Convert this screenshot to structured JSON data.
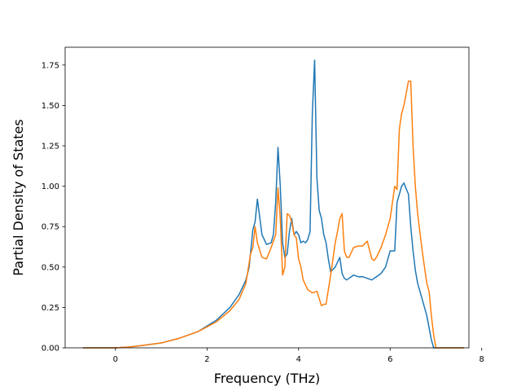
{
  "chart_data": {
    "type": "line",
    "title": "",
    "xlabel": "Frequency (THz)",
    "ylabel": "Partial Density of States",
    "xlim": [
      -1.1,
      7.72
    ],
    "ylim": [
      0,
      1.86
    ],
    "x_ticks": [
      0,
      2,
      4,
      6,
      8
    ],
    "x_tick_labels": [
      "0",
      "2",
      "4",
      "6",
      "8"
    ],
    "y_ticks": [
      0,
      0.25,
      0.5,
      0.75,
      1.0,
      1.25,
      1.5,
      1.75
    ],
    "y_tick_labels": [
      "0.00",
      "0.25",
      "0.50",
      "0.75",
      "1.00",
      "1.25",
      "1.50",
      "1.75"
    ],
    "grid": false,
    "series": [
      {
        "color": "#1f77b4",
        "x": [
          -0.7,
          0.0,
          0.3,
          0.6,
          1.0,
          1.4,
          1.8,
          2.2,
          2.5,
          2.7,
          2.85,
          2.92,
          3.0,
          3.05,
          3.1,
          3.2,
          3.3,
          3.4,
          3.45,
          3.5,
          3.55,
          3.6,
          3.65,
          3.7,
          3.75,
          3.8,
          3.85,
          3.9,
          3.95,
          4.0,
          4.05,
          4.1,
          4.15,
          4.2,
          4.25,
          4.3,
          4.35,
          4.4,
          4.45,
          4.5,
          4.55,
          4.6,
          4.65,
          4.7,
          4.8,
          4.85,
          4.9,
          4.95,
          5.0,
          5.05,
          5.1,
          5.15,
          5.2,
          5.3,
          5.4,
          5.5,
          5.6,
          5.7,
          5.8,
          5.9,
          6.0,
          6.1,
          6.15,
          6.2,
          6.25,
          6.3,
          6.4,
          6.45,
          6.5,
          6.55,
          6.6,
          6.7,
          6.8,
          6.9,
          6.95,
          7.0,
          7.6
        ],
        "y": [
          0.0,
          0.0,
          0.005,
          0.015,
          0.03,
          0.06,
          0.1,
          0.17,
          0.25,
          0.33,
          0.42,
          0.5,
          0.73,
          0.78,
          0.92,
          0.7,
          0.64,
          0.65,
          0.7,
          0.9,
          1.24,
          1.0,
          0.65,
          0.56,
          0.58,
          0.72,
          0.8,
          0.7,
          0.72,
          0.7,
          0.65,
          0.66,
          0.65,
          0.67,
          0.72,
          1.45,
          1.78,
          1.05,
          0.85,
          0.8,
          0.7,
          0.65,
          0.55,
          0.47,
          0.5,
          0.53,
          0.56,
          0.46,
          0.43,
          0.42,
          0.43,
          0.44,
          0.45,
          0.44,
          0.44,
          0.43,
          0.42,
          0.44,
          0.46,
          0.5,
          0.6,
          0.6,
          0.9,
          0.95,
          1.0,
          1.02,
          0.95,
          0.75,
          0.6,
          0.48,
          0.4,
          0.3,
          0.2,
          0.05,
          0.0,
          0.0,
          0.0
        ]
      },
      {
        "color": "#ff7f0e",
        "x": [
          -0.7,
          0.0,
          0.3,
          0.6,
          1.0,
          1.4,
          1.8,
          2.2,
          2.5,
          2.7,
          2.85,
          2.95,
          3.0,
          3.05,
          3.1,
          3.2,
          3.3,
          3.4,
          3.5,
          3.55,
          3.6,
          3.65,
          3.7,
          3.75,
          3.8,
          3.85,
          3.9,
          3.95,
          4.0,
          4.05,
          4.1,
          4.2,
          4.3,
          4.4,
          4.5,
          4.55,
          4.6,
          4.7,
          4.8,
          4.85,
          4.9,
          4.95,
          5.0,
          5.05,
          5.1,
          5.2,
          5.3,
          5.4,
          5.5,
          5.6,
          5.65,
          5.7,
          5.8,
          5.9,
          6.0,
          6.1,
          6.15,
          6.2,
          6.25,
          6.3,
          6.4,
          6.45,
          6.5,
          6.55,
          6.6,
          6.7,
          6.8,
          6.85,
          6.9,
          6.95,
          7.0,
          7.6
        ],
        "y": [
          0.0,
          0.0,
          0.005,
          0.015,
          0.03,
          0.06,
          0.1,
          0.16,
          0.23,
          0.3,
          0.4,
          0.58,
          0.62,
          0.75,
          0.65,
          0.56,
          0.55,
          0.62,
          0.7,
          0.99,
          0.8,
          0.45,
          0.5,
          0.83,
          0.82,
          0.78,
          0.7,
          0.68,
          0.55,
          0.5,
          0.42,
          0.36,
          0.34,
          0.35,
          0.26,
          0.27,
          0.27,
          0.45,
          0.65,
          0.72,
          0.8,
          0.83,
          0.6,
          0.56,
          0.56,
          0.62,
          0.63,
          0.63,
          0.66,
          0.55,
          0.54,
          0.56,
          0.62,
          0.7,
          0.8,
          1.0,
          0.98,
          1.35,
          1.45,
          1.5,
          1.65,
          1.65,
          1.25,
          1.0,
          0.83,
          0.6,
          0.4,
          0.35,
          0.2,
          0.08,
          0.0,
          0.0
        ]
      }
    ]
  }
}
